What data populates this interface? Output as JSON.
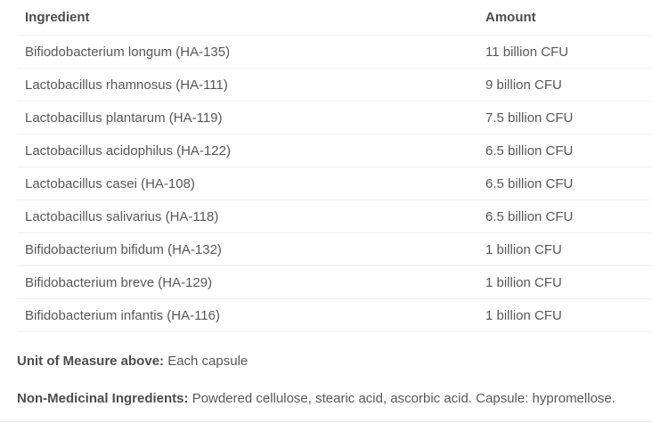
{
  "table": {
    "columns": [
      "Ingredient",
      "Amount"
    ],
    "rows": [
      {
        "ingredient": "Bifiodobacterium longum (HA-135)",
        "amount": "11 billion CFU"
      },
      {
        "ingredient": "Lactobacillus rhamnosus (HA-111)",
        "amount": "9 billion CFU"
      },
      {
        "ingredient": "Lactobacillus plantarum (HA-119)",
        "amount": "7.5 billion CFU"
      },
      {
        "ingredient": "Lactobacillus acidophilus (HA-122)",
        "amount": "6.5 billion CFU"
      },
      {
        "ingredient": "Lactobacillus casei (HA-108)",
        "amount": "6.5 billion CFU"
      },
      {
        "ingredient": "Lactobacillus salivarius (HA-118)",
        "amount": "6.5 billion CFU"
      },
      {
        "ingredient": "Bifidobacterium bifidum (HA-132)",
        "amount": "1 billion CFU"
      },
      {
        "ingredient": "Bifidobacterium breve (HA-129)",
        "amount": "1 billion CFU"
      },
      {
        "ingredient": "Bifidobacterium infantis (HA-116)",
        "amount": "1 billion CFU"
      }
    ]
  },
  "notes": {
    "unit_label": "Unit of Measure above:",
    "unit_value": "Each capsule",
    "nonmedicinal_label": "Non-Medicinal Ingredients:",
    "nonmedicinal_value": "Powdered cellulose, stearic acid, ascorbic acid. Capsule: hypromellose."
  },
  "colors": {
    "text": "#58585a",
    "heading": "#4d4d4f",
    "divider": "#f0f0f0",
    "bottom_rule": "#e9e9e9"
  }
}
